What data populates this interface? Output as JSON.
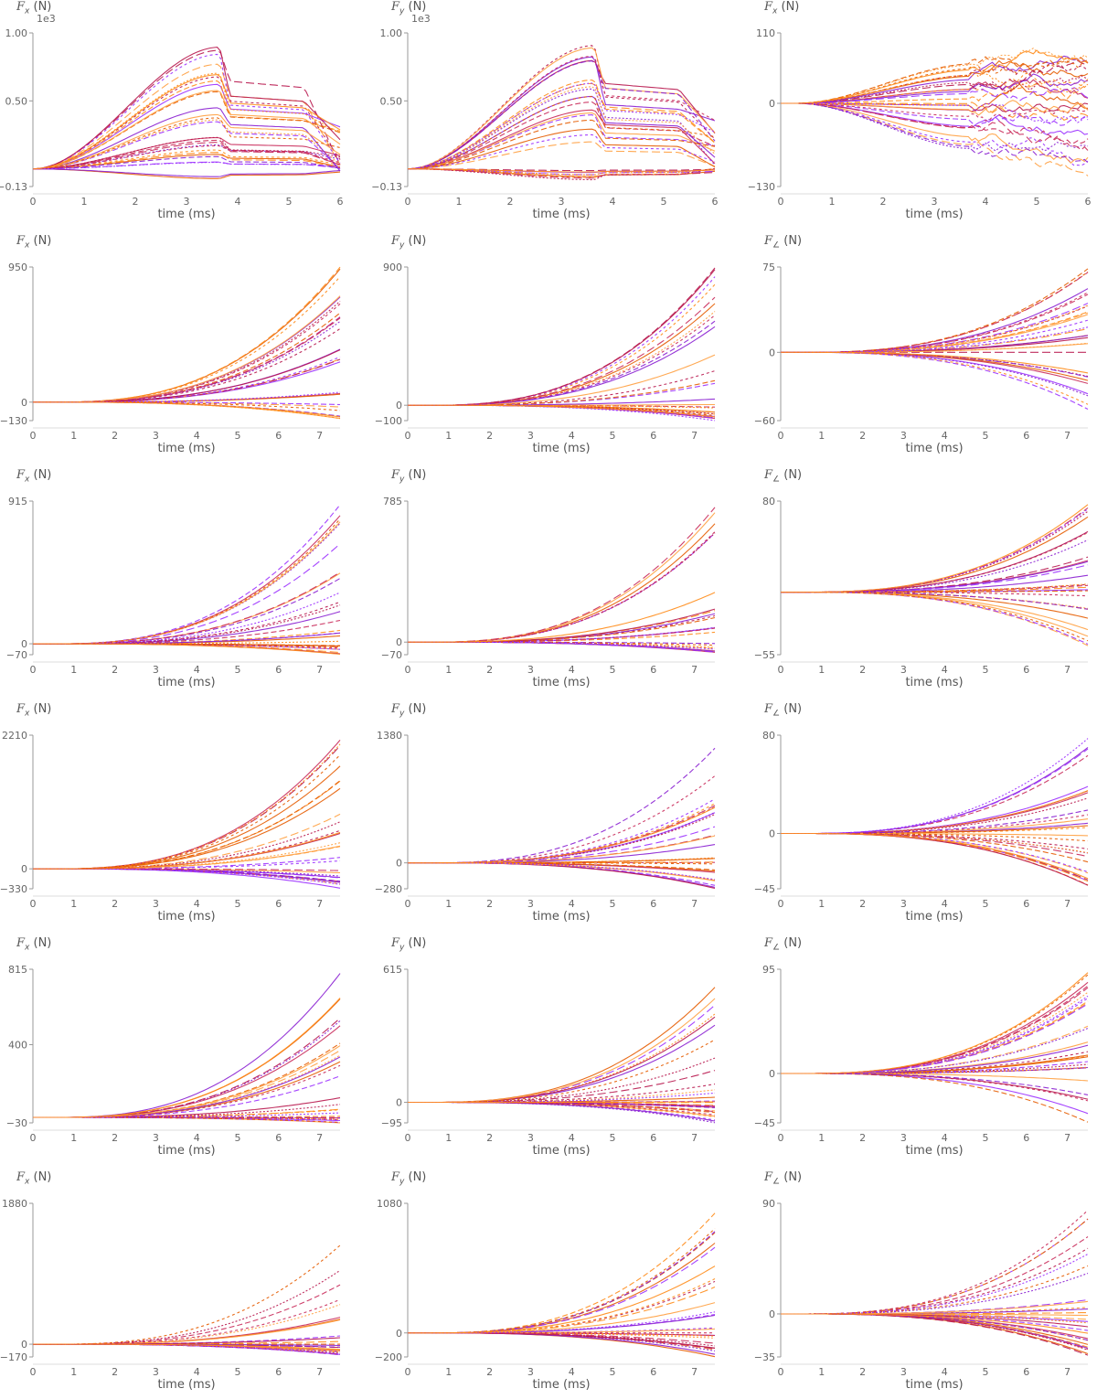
{
  "colors": {
    "series": [
      "#9b30ff",
      "#ff8c1a",
      "#b8174e",
      "#ffa040",
      "#8a1fd1",
      "#e65c00",
      "#c92a5a"
    ],
    "axis": "#999999",
    "text": "#555555"
  },
  "chart_data": [
    {
      "type": "line",
      "ylabel_var": "F",
      "ylabel_sub": "x",
      "ylabel_unit": " (N)",
      "sci": "1e3",
      "xlabel": "time (ms)",
      "xlim": [
        0,
        6
      ],
      "xticks": [
        0,
        1,
        2,
        3,
        4,
        5,
        6
      ],
      "ylim": [
        -0.13,
        1.0
      ],
      "yticks": [
        -0.13,
        0.5,
        1.0
      ],
      "yticklabels": [
        "−0.13",
        "0.50",
        "1.00"
      ],
      "pattern": "fxy"
    },
    {
      "type": "line",
      "ylabel_var": "F",
      "ylabel_sub": "y",
      "ylabel_unit": " (N)",
      "sci": "1e3",
      "xlabel": "time (ms)",
      "xlim": [
        0,
        6
      ],
      "xticks": [
        0,
        1,
        2,
        3,
        4,
        5,
        6
      ],
      "ylim": [
        -0.13,
        1.0
      ],
      "yticks": [
        -0.13,
        0.5,
        1.0
      ],
      "yticklabels": [
        "−0.13",
        "0.50",
        "1.00"
      ],
      "pattern": "fxy"
    },
    {
      "type": "line",
      "ylabel_var": "F",
      "ylabel_sub": "x",
      "ylabel_unit": " (N)",
      "sci": "",
      "xlabel": "time (ms)",
      "xlim": [
        0,
        6
      ],
      "xticks": [
        0,
        1,
        2,
        3,
        4,
        5,
        6
      ],
      "ylim": [
        -130,
        110
      ],
      "yticks": [
        -130,
        0,
        110
      ],
      "yticklabels": [
        "−130",
        "0",
        "110"
      ],
      "pattern": "noisy"
    },
    {
      "type": "line",
      "ylabel_var": "F",
      "ylabel_sub": "x",
      "ylabel_unit": " (N)",
      "sci": "",
      "xlabel": "time (ms)",
      "xlim": [
        0,
        7.5
      ],
      "xticks": [
        0,
        1,
        2,
        3,
        4,
        5,
        6,
        7
      ],
      "ylim": [
        -130,
        950
      ],
      "yticks": [
        -130,
        0,
        950
      ],
      "yticklabels": [
        "−130",
        "0",
        "950"
      ],
      "pattern": "fan"
    },
    {
      "type": "line",
      "ylabel_var": "F",
      "ylabel_sub": "y",
      "ylabel_unit": " (N)",
      "sci": "",
      "xlabel": "time (ms)",
      "xlim": [
        0,
        7.5
      ],
      "xticks": [
        0,
        1,
        2,
        3,
        4,
        5,
        6,
        7
      ],
      "ylim": [
        -100,
        900
      ],
      "yticks": [
        -100,
        0,
        900
      ],
      "yticklabels": [
        "−100",
        "0",
        "900"
      ],
      "pattern": "fan"
    },
    {
      "type": "line",
      "ylabel_var": "F",
      "ylabel_sub": "∠",
      "ylabel_unit": " (N)",
      "sci": "",
      "xlabel": "time (ms)",
      "xlim": [
        0,
        7.5
      ],
      "xticks": [
        0,
        1,
        2,
        3,
        4,
        5,
        6,
        7
      ],
      "ylim": [
        -60,
        75
      ],
      "yticks": [
        -60,
        0,
        75
      ],
      "yticklabels": [
        "−60",
        "0",
        "75"
      ],
      "pattern": "fan"
    },
    {
      "type": "line",
      "ylabel_var": "F",
      "ylabel_sub": "x",
      "ylabel_unit": " (N)",
      "sci": "",
      "xlabel": "time (ms)",
      "xlim": [
        0,
        7.5
      ],
      "xticks": [
        0,
        1,
        2,
        3,
        4,
        5,
        6,
        7
      ],
      "ylim": [
        -70,
        915
      ],
      "yticks": [
        -70,
        0,
        915
      ],
      "yticklabels": [
        "−70",
        "0",
        "915"
      ],
      "pattern": "fan"
    },
    {
      "type": "line",
      "ylabel_var": "F",
      "ylabel_sub": "y",
      "ylabel_unit": " (N)",
      "sci": "",
      "xlabel": "time (ms)",
      "xlim": [
        0,
        7.5
      ],
      "xticks": [
        0,
        1,
        2,
        3,
        4,
        5,
        6,
        7
      ],
      "ylim": [
        -70,
        785
      ],
      "yticks": [
        -70,
        0,
        785
      ],
      "yticklabels": [
        "−70",
        "0",
        "785"
      ],
      "pattern": "fan"
    },
    {
      "type": "line",
      "ylabel_var": "F",
      "ylabel_sub": "∠",
      "ylabel_unit": " (N)",
      "sci": "",
      "xlabel": "time (ms)",
      "xlim": [
        0,
        7.5
      ],
      "xticks": [
        0,
        1,
        2,
        3,
        4,
        5,
        6,
        7
      ],
      "ylim": [
        -55,
        80
      ],
      "yticks": [
        -55,
        80
      ],
      "yticklabels": [
        "−55",
        "80"
      ],
      "pattern": "fan"
    },
    {
      "type": "line",
      "ylabel_var": "F",
      "ylabel_sub": "x",
      "ylabel_unit": " (N)",
      "sci": "",
      "xlabel": "time (ms)",
      "xlim": [
        0,
        7.5
      ],
      "xticks": [
        0,
        1,
        2,
        3,
        4,
        5,
        6,
        7
      ],
      "ylim": [
        -330,
        2210
      ],
      "yticks": [
        -330,
        0,
        2210
      ],
      "yticklabels": [
        "−330",
        "0",
        "2210"
      ],
      "pattern": "fan"
    },
    {
      "type": "line",
      "ylabel_var": "F",
      "ylabel_sub": "y",
      "ylabel_unit": " (N)",
      "sci": "",
      "xlabel": "time (ms)",
      "xlim": [
        0,
        7.5
      ],
      "xticks": [
        0,
        1,
        2,
        3,
        4,
        5,
        6,
        7
      ],
      "ylim": [
        -280,
        1380
      ],
      "yticks": [
        -280,
        0,
        1380
      ],
      "yticklabels": [
        "−280",
        "0",
        "1380"
      ],
      "pattern": "fan"
    },
    {
      "type": "line",
      "ylabel_var": "F",
      "ylabel_sub": "∠",
      "ylabel_unit": " (N)",
      "sci": "",
      "xlabel": "time (ms)",
      "xlim": [
        0,
        7.5
      ],
      "xticks": [
        0,
        1,
        2,
        3,
        4,
        5,
        6,
        7
      ],
      "ylim": [
        -45,
        80
      ],
      "yticks": [
        -45,
        0,
        80
      ],
      "yticklabels": [
        "−45",
        "0",
        "80"
      ],
      "pattern": "fan"
    },
    {
      "type": "line",
      "ylabel_var": "F",
      "ylabel_sub": "x",
      "ylabel_unit": " (N)",
      "sci": "",
      "xlabel": "time (ms)",
      "xlim": [
        0,
        7.5
      ],
      "xticks": [
        0,
        1,
        2,
        3,
        4,
        5,
        6,
        7
      ],
      "ylim": [
        -30,
        815
      ],
      "yticks": [
        -30,
        400,
        815
      ],
      "yticklabels": [
        "−30",
        "400",
        "815"
      ],
      "pattern": "fan"
    },
    {
      "type": "line",
      "ylabel_var": "F",
      "ylabel_sub": "y",
      "ylabel_unit": " (N)",
      "sci": "",
      "xlabel": "time (ms)",
      "xlim": [
        0,
        7.5
      ],
      "xticks": [
        0,
        1,
        2,
        3,
        4,
        5,
        6,
        7
      ],
      "ylim": [
        -95,
        615
      ],
      "yticks": [
        -95,
        0,
        615
      ],
      "yticklabels": [
        "−95",
        "0",
        "615"
      ],
      "pattern": "fan"
    },
    {
      "type": "line",
      "ylabel_var": "F",
      "ylabel_sub": "∠",
      "ylabel_unit": " (N)",
      "sci": "",
      "xlabel": "time (ms)",
      "xlim": [
        0,
        7.5
      ],
      "xticks": [
        0,
        1,
        2,
        3,
        4,
        5,
        6,
        7
      ],
      "ylim": [
        -45,
        95
      ],
      "yticks": [
        -45,
        0,
        95
      ],
      "yticklabels": [
        "−45",
        "0",
        "95"
      ],
      "pattern": "fan"
    },
    {
      "type": "line",
      "ylabel_var": "F",
      "ylabel_sub": "x",
      "ylabel_unit": " (N)",
      "sci": "",
      "xlabel": "time (ms)",
      "xlim": [
        0,
        7.5
      ],
      "xticks": [
        0,
        1,
        2,
        3,
        4,
        5,
        6,
        7
      ],
      "ylim": [
        -170,
        1880
      ],
      "yticks": [
        -170,
        0,
        1880
      ],
      "yticklabels": [
        "−170",
        "0",
        "1880"
      ],
      "pattern": "fan"
    },
    {
      "type": "line",
      "ylabel_var": "F",
      "ylabel_sub": "y",
      "ylabel_unit": " (N)",
      "sci": "",
      "xlabel": "time (ms)",
      "xlim": [
        0,
        7.5
      ],
      "xticks": [
        0,
        1,
        2,
        3,
        4,
        5,
        6,
        7
      ],
      "ylim": [
        -200,
        1080
      ],
      "yticks": [
        -200,
        0,
        1080
      ],
      "yticklabels": [
        "−200",
        "0",
        "1080"
      ],
      "pattern": "fan"
    },
    {
      "type": "line",
      "ylabel_var": "F",
      "ylabel_sub": "∠",
      "ylabel_unit": " (N)",
      "sci": "",
      "xlabel": "time (ms)",
      "xlim": [
        0,
        7.5
      ],
      "xticks": [
        0,
        1,
        2,
        3,
        4,
        5,
        6,
        7
      ],
      "ylim": [
        -35,
        90
      ],
      "yticks": [
        -35,
        0,
        90
      ],
      "yticklabels": [
        "−35",
        "0",
        "90"
      ],
      "pattern": "fan"
    }
  ]
}
